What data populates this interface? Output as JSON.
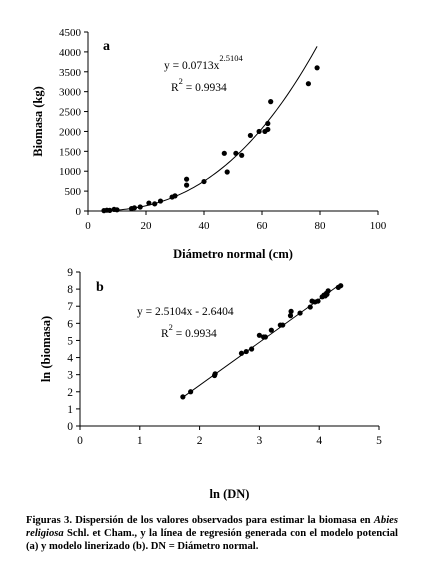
{
  "chart_data": [
    {
      "panel_label": "a",
      "type": "scatter",
      "xlabel": "Diámetro normal (cm)",
      "ylabel": "Biomasa (kg)",
      "xlim": [
        0,
        100
      ],
      "ylim": [
        0,
        4500
      ],
      "xticks": [
        0,
        20,
        40,
        60,
        80,
        100
      ],
      "yticks": [
        0,
        500,
        1000,
        1500,
        2000,
        2500,
        3000,
        3500,
        4000,
        4500
      ],
      "grid": false,
      "legend": "none",
      "annotations": [
        "y = 0.0713x",
        "2.5104",
        "R",
        "2",
        " = 0.9934"
      ],
      "fit": {
        "kind": "power",
        "a": 0.0713,
        "b": 2.5104,
        "x_range": [
          5,
          79
        ]
      },
      "series": [
        {
          "x": [
            5.5,
            6.5,
            7.5,
            9,
            10,
            15,
            16,
            18,
            21,
            23,
            25,
            29,
            30,
            34,
            34,
            40,
            47,
            48,
            51,
            53,
            56,
            59,
            61,
            62,
            62,
            63,
            76,
            79
          ],
          "y": [
            10,
            20,
            15,
            40,
            30,
            60,
            80,
            100,
            200,
            180,
            250,
            350,
            380,
            650,
            800,
            740,
            1450,
            980,
            1450,
            1400,
            1900,
            2000,
            2000,
            2050,
            2200,
            2750,
            3200,
            3600
          ]
        }
      ]
    },
    {
      "panel_label": "b",
      "type": "scatter",
      "xlabel": "ln (DN)",
      "ylabel": "ln (biomasa)",
      "xlim": [
        0,
        5
      ],
      "ylim": [
        0,
        9
      ],
      "xticks": [
        0,
        1,
        2,
        3,
        4,
        5
      ],
      "yticks": [
        0,
        1,
        2,
        3,
        4,
        5,
        6,
        7,
        8,
        9
      ],
      "grid": false,
      "legend": "none",
      "annotations": [
        "y = 2.5104x - 2.6404",
        "R",
        "2",
        " = 0.9934"
      ],
      "fit": {
        "kind": "linear",
        "slope": 2.5104,
        "intercept": -2.6404,
        "x_range": [
          1.72,
          4.36
        ]
      },
      "series": [
        {
          "x": [
            1.72,
            1.85,
            2.25,
            2.26,
            2.7,
            2.78,
            2.87,
            3.0,
            3.07,
            3.1,
            3.2,
            3.35,
            3.39,
            3.52,
            3.53,
            3.68,
            3.85,
            3.88,
            3.93,
            3.98,
            4.05,
            4.08,
            4.1,
            4.12,
            4.13,
            4.15,
            4.32,
            4.36
          ],
          "y": [
            1.7,
            2.0,
            2.95,
            3.05,
            4.25,
            4.35,
            4.5,
            5.3,
            5.2,
            5.2,
            5.6,
            5.9,
            5.9,
            6.45,
            6.7,
            6.6,
            6.95,
            7.3,
            7.25,
            7.3,
            7.55,
            7.65,
            7.6,
            7.75,
            7.7,
            7.9,
            8.1,
            8.2
          ]
        }
      ]
    }
  ],
  "caption": {
    "label": "Figuras 3.",
    "text_part1": " Dispersión de los valores observados para estimar la biomasa en ",
    "species": "Abies religiosa",
    "text_part2": " Schl. et Cham., y la línea de regresión generada con el modelo potencial (a) y modelo linerizado (b). DN = Diámetro normal."
  }
}
